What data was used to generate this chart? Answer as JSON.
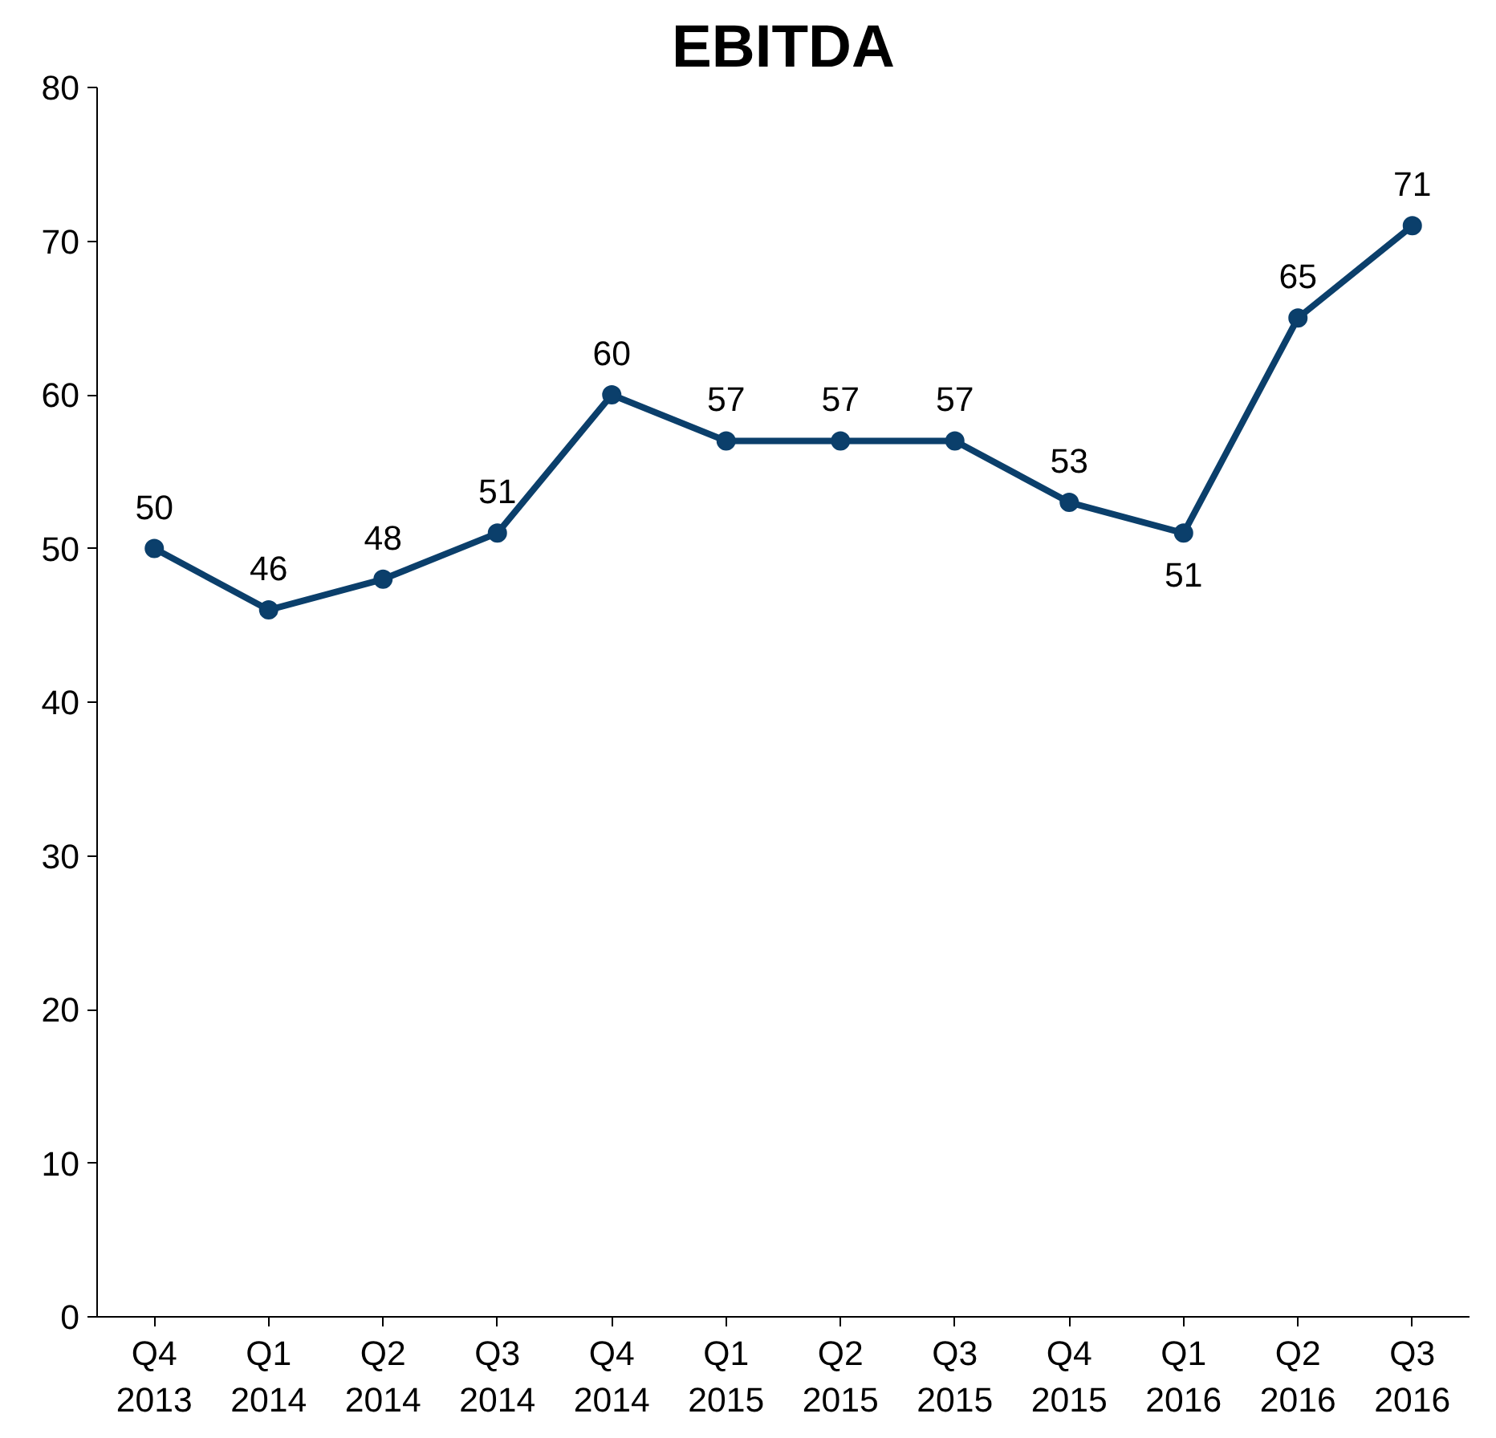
{
  "chart_data": {
    "type": "line",
    "title": "EBITDA",
    "categories": [
      "Q4\n2013",
      "Q1\n2014",
      "Q2\n2014",
      "Q3\n2014",
      "Q4\n2014",
      "Q1\n2015",
      "Q2\n2015",
      "Q3\n2015",
      "Q4\n2015",
      "Q1\n2016",
      "Q2\n2016",
      "Q3\n2016"
    ],
    "series": [
      {
        "color": "#0b3f6b",
        "values": [
          50,
          46,
          48,
          51,
          60,
          57,
          57,
          57,
          53,
          51,
          65,
          71
        ]
      }
    ],
    "ylim": [
      0,
      80
    ],
    "yticks": [
      0,
      10,
      20,
      30,
      40,
      50,
      60,
      70,
      80
    ],
    "grid": false,
    "marker": "circle",
    "line_style": "solid",
    "data_labels": true
  }
}
